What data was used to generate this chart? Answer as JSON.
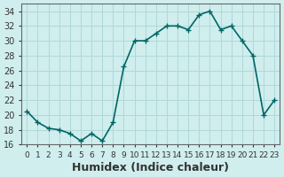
{
  "x": [
    0,
    1,
    2,
    3,
    4,
    5,
    6,
    7,
    8,
    9,
    10,
    11,
    12,
    13,
    14,
    15,
    16,
    17,
    18,
    19,
    20,
    21,
    22,
    23
  ],
  "y": [
    20.5,
    19.0,
    18.2,
    18.0,
    17.5,
    16.5,
    17.5,
    16.5,
    19.0,
    26.5,
    30.0,
    30.0,
    31.0,
    32.0,
    32.0,
    31.5,
    33.5,
    34.0,
    31.5,
    32.0,
    30.0,
    28.0,
    20.0,
    22.0
  ],
  "line_color": "#006666",
  "marker": "+",
  "marker_size": 5,
  "xlabel": "Humidex (Indice chaleur)",
  "xlabel_fontsize": 9,
  "xlim": [
    -0.5,
    23.5
  ],
  "ylim": [
    16,
    35
  ],
  "yticks": [
    16,
    18,
    20,
    22,
    24,
    26,
    28,
    30,
    32,
    34
  ],
  "xtick_labels": [
    "0",
    "1",
    "2",
    "3",
    "4",
    "5",
    "6",
    "7",
    "8",
    "9",
    "10",
    "11",
    "12",
    "13",
    "14",
    "15",
    "16",
    "17",
    "18",
    "19",
    "20",
    "21",
    "22",
    "23"
  ],
  "grid_color": "#b0d8d8",
  "background_color": "#d0eeee",
  "tick_fontsize": 7,
  "line_width": 1.2
}
